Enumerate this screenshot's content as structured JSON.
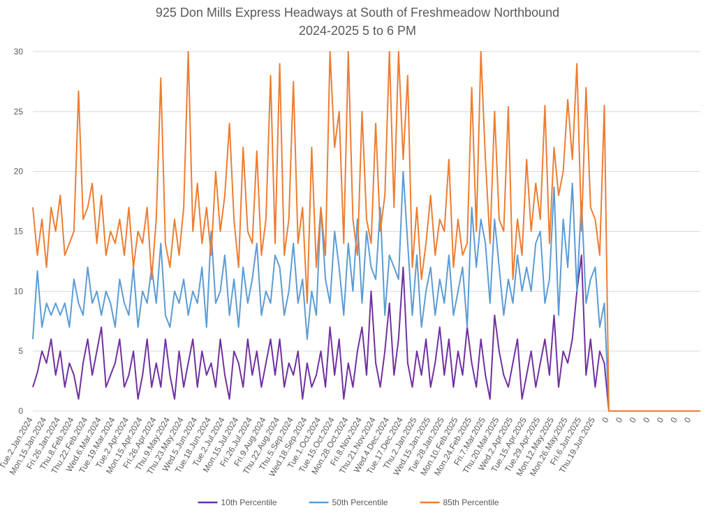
{
  "chart_data": {
    "type": "line",
    "title": "925 Don Mills Express Headways at South of Freshmeadow Northbound",
    "subtitle": "2024-2025 5 to 6 PM",
    "categories": [
      "Tue.2.Jan.2024",
      null,
      null,
      "Mon.15.Jan.2024",
      null,
      null,
      "Fri.26.Jan.2024",
      null,
      null,
      "Thu.8.Feb.2024",
      null,
      null,
      "Thu.22.Feb.2024",
      null,
      null,
      "Wed.6.Mar.2024",
      null,
      null,
      "Tue.19.Mar.2024",
      null,
      null,
      "Tue.2.Apr.2024",
      null,
      null,
      "Mon.15.Apr.2024",
      null,
      null,
      "Fri.26.Apr.2024",
      null,
      null,
      "Thu.9.May.2024",
      null,
      null,
      "Thu.23.May.2024",
      null,
      null,
      "Wed.5.Jun.2024",
      null,
      null,
      "Tue.18.Jun.2024",
      null,
      null,
      "Tue.2.Jul.2024",
      null,
      null,
      "Mon.15.Jul.2024",
      null,
      null,
      "Fri.26.Jul.2024",
      null,
      null,
      "Fri.9.Aug.2024",
      null,
      null,
      "Thu.22.Aug.2024",
      null,
      null,
      "Thu.5.Sep.2024",
      null,
      null,
      "Wed.18.Sep.2024",
      null,
      null,
      "Tue.1.Oct.2024",
      null,
      null,
      "Tue.15.Oct.2024",
      null,
      null,
      "Mon.28.Oct.2024",
      null,
      null,
      "Fri.8.Nov.2024",
      null,
      null,
      "Thu.21.Nov.2024",
      null,
      null,
      "Wed.4.Dec.2024",
      null,
      null,
      "Tue.17.Dec.2024",
      null,
      null,
      "Thu.2.Jan.2025",
      null,
      null,
      "Wed.15.Jan.2025",
      null,
      null,
      "Tue.28.Jan.2025",
      null,
      null,
      "Mon.10.Feb.2025",
      null,
      null,
      "Mon.24.Feb.2025",
      null,
      null,
      "Fri.7.Mar.2025",
      null,
      null,
      "Thu.20.Mar.2025",
      null,
      null,
      "Wed.2.Apr.2025",
      null,
      null,
      "Tue.15.Apr.2025",
      null,
      null,
      "Tue.29.Apr.2025",
      null,
      null,
      "Mon.12.May.2025",
      null,
      null,
      "Mon.26.May.2025",
      null,
      null,
      "Fri.6.Jun.2025",
      null,
      null,
      "Thu.19.Jun.2025",
      null,
      null,
      "0",
      null,
      null,
      "0",
      null,
      null,
      "0",
      null,
      null,
      "0",
      null,
      null,
      "0",
      null,
      null,
      "0",
      null,
      null,
      "0",
      null,
      null
    ],
    "series": [
      {
        "name": "10th Percentile",
        "color": "#7030a0",
        "values": [
          2,
          3.2,
          5,
          4,
          6,
          3,
          5,
          2,
          4,
          3,
          1,
          4,
          6,
          3,
          5,
          7,
          2,
          3,
          4,
          6,
          2,
          3,
          5,
          1,
          3,
          6,
          2,
          4,
          2,
          6,
          3,
          1,
          5,
          2,
          4,
          6,
          2,
          5,
          3,
          4,
          2,
          6,
          3,
          1,
          5,
          4,
          2,
          6,
          3,
          5,
          2,
          4,
          6,
          3,
          6,
          2,
          4,
          3,
          5,
          1,
          4,
          2,
          3,
          5,
          2,
          7,
          3,
          6,
          1,
          4,
          2,
          5,
          7,
          3,
          10,
          4,
          2,
          5,
          9,
          3,
          6,
          12,
          4,
          2,
          5,
          3,
          6,
          2,
          4,
          7,
          3,
          6,
          2,
          5,
          3,
          7,
          4,
          2,
          6,
          3,
          1,
          8,
          5,
          3,
          2,
          4,
          6,
          1,
          3,
          5,
          2,
          4,
          6,
          3,
          8,
          2,
          5,
          4,
          6,
          10,
          13,
          3,
          6,
          2,
          5,
          4,
          0,
          0,
          0,
          0,
          0,
          0,
          0,
          0,
          0,
          0,
          0,
          0,
          0,
          0,
          0,
          0,
          0,
          0,
          0,
          0,
          0
        ]
      },
      {
        "name": "50th Percentile",
        "color": "#5b9bd5",
        "values": [
          6,
          11.7,
          7,
          9,
          8,
          9,
          8,
          9,
          7,
          11,
          9,
          8,
          12,
          9,
          10,
          8,
          10,
          9,
          7,
          11,
          9,
          8,
          12,
          7,
          10,
          9,
          12,
          9,
          14,
          8,
          7,
          10,
          9,
          11,
          8,
          10,
          9,
          12,
          7,
          15,
          9,
          10,
          13,
          8,
          11,
          7,
          12,
          9,
          11,
          14,
          8,
          10,
          9,
          13,
          12,
          8,
          10,
          14,
          9,
          11,
          6,
          10,
          8,
          17,
          11,
          9,
          15,
          12,
          8,
          14,
          10,
          16,
          9,
          15,
          12,
          11,
          17,
          8,
          13,
          12,
          11,
          20,
          14,
          8,
          13,
          7,
          10,
          12,
          8,
          11,
          9,
          13,
          8,
          10,
          12,
          7,
          17,
          12,
          16,
          14,
          9,
          16,
          12,
          8,
          11,
          9,
          13,
          10,
          12,
          10,
          14,
          15,
          9,
          11,
          18.7,
          8,
          16,
          12,
          19,
          10,
          17.5,
          9,
          11,
          12,
          7,
          9,
          0,
          0,
          0,
          0,
          0,
          0,
          0,
          0,
          0,
          0,
          0,
          0,
          0,
          0,
          0,
          0,
          0,
          0,
          0,
          0,
          0
        ]
      },
      {
        "name": "85th Percentile",
        "color": "#ed7d31",
        "values": [
          17,
          13,
          16,
          12,
          17,
          15,
          18,
          13,
          14,
          15,
          26.7,
          16,
          17,
          19,
          14,
          18,
          13,
          15,
          14,
          16,
          13,
          17,
          12,
          15,
          14,
          17,
          11,
          16,
          27.8,
          14,
          12,
          16,
          13,
          17,
          30,
          15,
          19,
          14,
          17,
          13,
          20,
          15,
          18,
          24,
          16,
          12,
          22,
          15,
          14,
          21.7,
          13,
          16,
          28,
          14,
          29,
          13,
          16,
          27.5,
          14,
          17,
          9,
          22,
          12,
          17,
          13,
          30,
          22,
          25,
          14,
          30,
          16,
          13,
          25,
          16,
          14,
          24,
          15,
          18,
          30,
          17,
          30,
          21,
          28,
          12,
          17,
          11,
          14,
          18,
          13,
          16,
          15,
          21,
          12,
          16,
          13,
          14,
          27,
          15,
          30,
          21,
          14,
          25,
          16,
          15,
          25.4,
          11,
          16,
          13,
          21,
          15,
          19,
          16,
          25.5,
          14,
          22,
          18,
          20,
          26,
          21,
          29,
          15,
          27,
          17,
          16,
          13,
          25.5,
          0,
          0,
          0,
          0,
          0,
          0,
          0,
          0,
          0,
          0,
          0,
          0,
          0,
          0,
          0,
          0,
          0,
          0,
          0,
          0,
          0
        ]
      }
    ],
    "ylim": [
      0,
      30
    ],
    "yticks": [
      0,
      5,
      10,
      15,
      20,
      25,
      30
    ],
    "grid": true,
    "legend": "bottom"
  }
}
